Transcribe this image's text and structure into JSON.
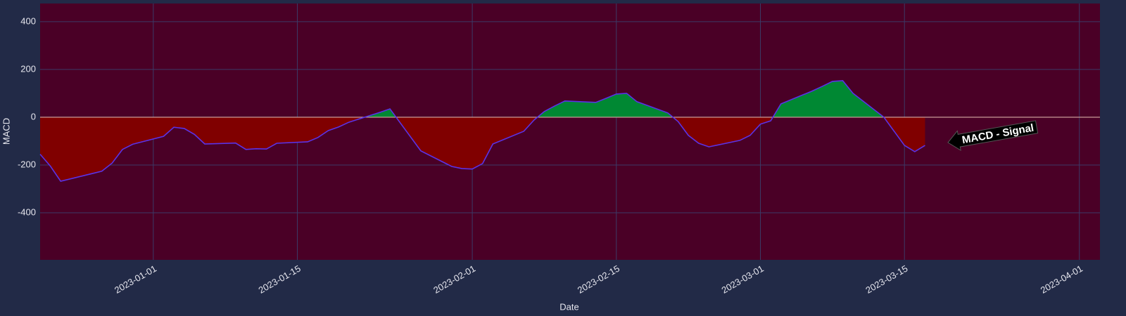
{
  "chart_data": {
    "type": "area",
    "xlabel": "Date",
    "ylabel": "MACD",
    "annotation": "MACD - Signal",
    "x": [
      "2022-12-21",
      "2022-12-22",
      "2022-12-23",
      "2022-12-27",
      "2022-12-28",
      "2022-12-29",
      "2022-12-30",
      "2023-01-02",
      "2023-01-03",
      "2023-01-04",
      "2023-01-05",
      "2023-01-06",
      "2023-01-09",
      "2023-01-10",
      "2023-01-11",
      "2023-01-12",
      "2023-01-13",
      "2023-01-16",
      "2023-01-17",
      "2023-01-18",
      "2023-01-19",
      "2023-01-20",
      "2023-01-23",
      "2023-01-24",
      "2023-01-27",
      "2023-01-30",
      "2023-01-31",
      "2023-02-01",
      "2023-02-02",
      "2023-02-03",
      "2023-02-06",
      "2023-02-07",
      "2023-02-08",
      "2023-02-09",
      "2023-02-10",
      "2023-02-13",
      "2023-02-14",
      "2023-02-15",
      "2023-02-16",
      "2023-02-17",
      "2023-02-20",
      "2023-02-21",
      "2023-02-22",
      "2023-02-23",
      "2023-02-24",
      "2023-02-27",
      "2023-02-28",
      "2023-03-01",
      "2023-03-02",
      "2023-03-03",
      "2023-03-06",
      "2023-03-07",
      "2023-03-08",
      "2023-03-09",
      "2023-03-10",
      "2023-03-13",
      "2023-03-14",
      "2023-03-15",
      "2023-03-16",
      "2023-03-17"
    ],
    "values": [
      -155,
      -205,
      -268,
      -226,
      -192,
      -135,
      -113,
      -80,
      -42,
      -47,
      -72,
      -112,
      -108,
      -135,
      -132,
      -133,
      -109,
      -103,
      -85,
      -56,
      -41,
      -21,
      20,
      35,
      -141,
      -206,
      -215,
      -217,
      -194,
      -112,
      -59,
      -12,
      24,
      47,
      68,
      62,
      79,
      97,
      100,
      65,
      18,
      -18,
      -76,
      -109,
      -124,
      -97,
      -76,
      -29,
      -15,
      56,
      109,
      129,
      150,
      153,
      100,
      0,
      -59,
      -118,
      -144,
      -118
    ],
    "xlim": [
      "2022-12-21",
      "2023-04-03"
    ],
    "xticks": [
      "2023-01-01",
      "2023-01-15",
      "2023-02-01",
      "2023-02-15",
      "2023-03-01",
      "2023-03-15",
      "2023-04-01"
    ],
    "ylim": [
      -597,
      476
    ],
    "yticks": [
      -400,
      -200,
      0,
      200,
      400
    ],
    "grid": true,
    "line_color": "#5a32e6",
    "positive_color": "#008833",
    "negative_color": "#800000"
  }
}
